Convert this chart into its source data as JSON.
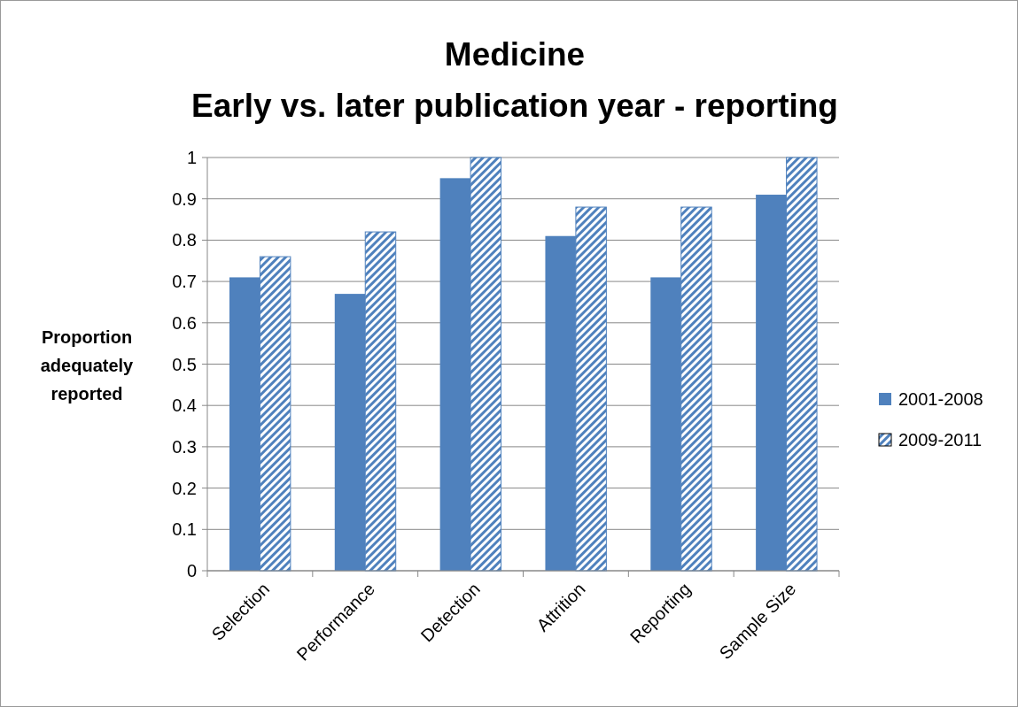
{
  "chart_data": {
    "type": "bar",
    "title": "Medicine",
    "subtitle": "Early vs. later publication year - reporting",
    "ylabel": "Proportion adequately reported",
    "categories": [
      "Selection",
      "Performance",
      "Detection",
      "Attrition",
      "Reporting",
      "Sample Size"
    ],
    "series": [
      {
        "name": "2001-2008",
        "color": "#4f81bd",
        "values": [
          0.71,
          0.67,
          0.95,
          0.81,
          0.71,
          0.91
        ]
      },
      {
        "name": "2009-2011",
        "color": "#4f81bd",
        "values": [
          0.76,
          0.82,
          1,
          0.88,
          0.88,
          1
        ]
      }
    ],
    "ylim": [
      0,
      1
    ],
    "yticks": [
      0,
      0.1,
      0.2,
      0.3,
      0.4,
      0.5,
      0.6,
      0.7,
      0.8,
      0.9,
      1
    ],
    "grid": "y",
    "legend": "right"
  }
}
